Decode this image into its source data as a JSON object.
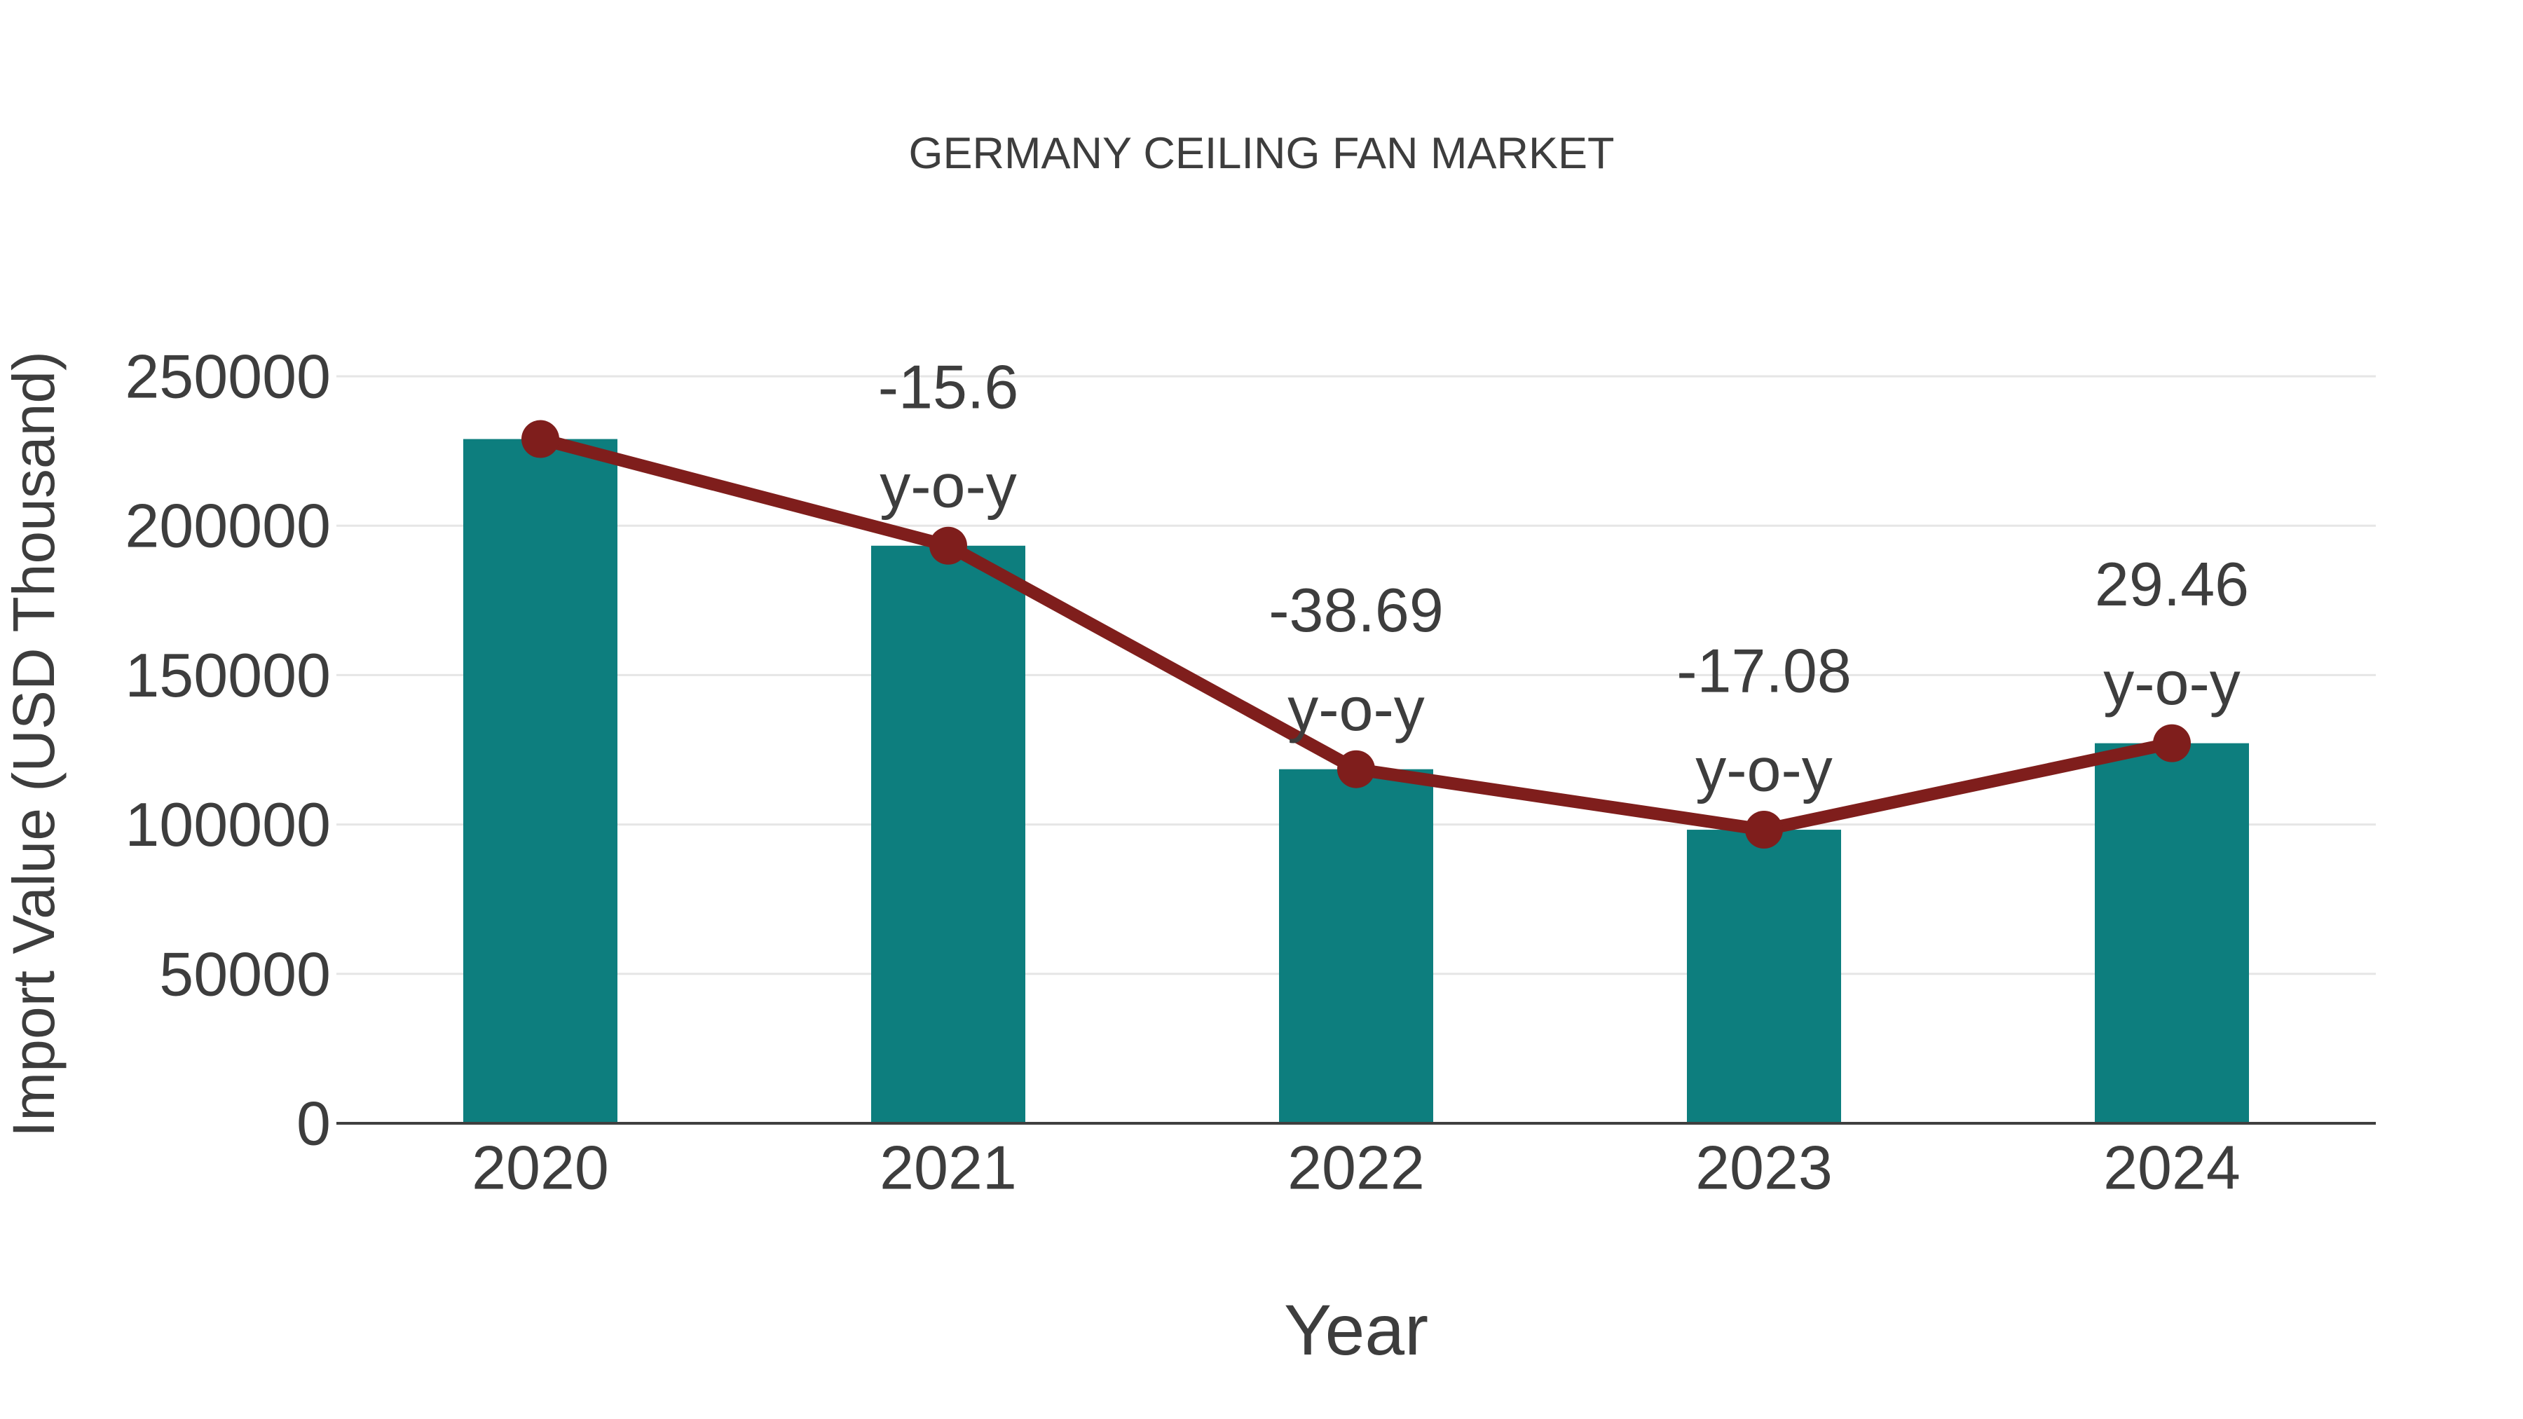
{
  "chart_data": {
    "type": "bar",
    "title": "GERMANY CEILING FAN MARKET",
    "xlabel": "Year",
    "ylabel": "Import Value (USD Thousand)",
    "categories": [
      "2020",
      "2021",
      "2022",
      "2023",
      "2024"
    ],
    "series": [
      {
        "name": "Import Value bars",
        "type": "bar",
        "values": [
          229000,
          193300,
          118500,
          98250,
          127200
        ]
      },
      {
        "name": "Import Value trend line",
        "type": "line",
        "values": [
          229000,
          193300,
          118500,
          98250,
          127200
        ]
      }
    ],
    "annotations": [
      {
        "category": "2021",
        "value_text": "-15.6",
        "suffix": "y-o-y"
      },
      {
        "category": "2022",
        "value_text": "-38.69",
        "suffix": "y-o-y"
      },
      {
        "category": "2023",
        "value_text": "-17.08",
        "suffix": "y-o-y"
      },
      {
        "category": "2024",
        "value_text": "29.46",
        "suffix": "y-o-y"
      }
    ],
    "ylim": [
      0,
      250000
    ],
    "yticks": [
      0,
      50000,
      100000,
      150000,
      200000,
      250000
    ],
    "grid": "horizontal",
    "legend": "none"
  },
  "colors": {
    "bar": "#0d7e7e",
    "line": "#7f1e1c",
    "marker": "#7f1e1c",
    "text": "#3d3d3d",
    "gridline": "#e6e6e6",
    "axis_line": "#3f3f3f",
    "background": "#ffffff"
  }
}
